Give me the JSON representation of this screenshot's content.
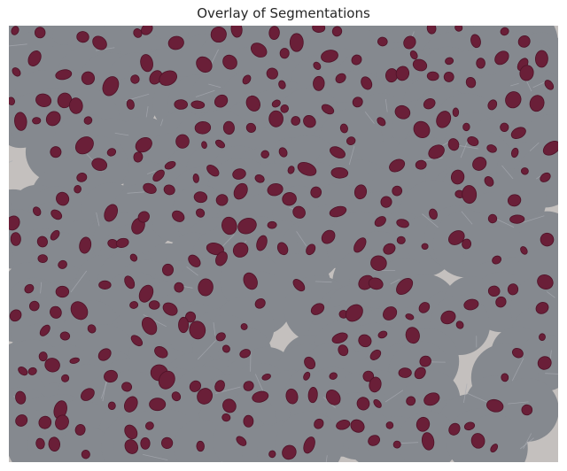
{
  "figure": {
    "title": "Overlay of Segmentations"
  },
  "image": {
    "description_kind": "microscopy-overlay",
    "colors": {
      "background_tissue": "#c4c0be",
      "region_mask": "#85898f",
      "nucleus_fill": "#6a1f38",
      "nucleus_edge": "#4e1227"
    }
  }
}
